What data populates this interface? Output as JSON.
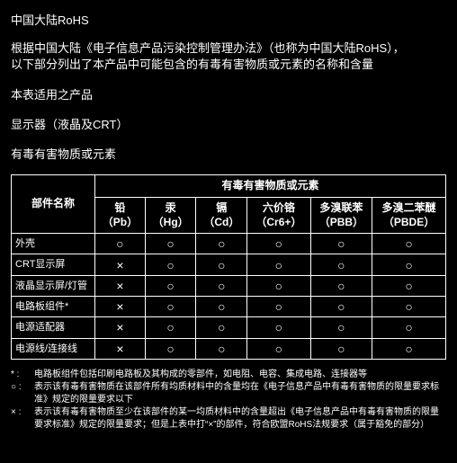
{
  "title": "中国大陆RoHS",
  "intro_line1": "根据中国大陆《电子信息产品污染控制管理办法》（也称为中国大陆RoHS），",
  "intro_line2": "以下部分列出了本产品中可能包含的有毒有害物质或元素的名称和含量",
  "section_products": "本表适用之产品",
  "section_display": "显示器（液晶及CRT）",
  "section_substances": "有毒有害物质或元素",
  "table": {
    "header_parts": "部件名称",
    "header_group": "有毒有害物质或元素",
    "sub": [
      {
        "zh": "铅",
        "sym": "（Pb）"
      },
      {
        "zh": "汞",
        "sym": "（Hg）"
      },
      {
        "zh": "镉",
        "sym": "（Cd）"
      },
      {
        "zh": "六价铬",
        "sym": "（Cr6+）"
      },
      {
        "zh": "多溴联苯",
        "sym": "（PBB）"
      },
      {
        "zh": "多溴二苯醚",
        "sym": "（PBDE）"
      }
    ],
    "rows": [
      {
        "name": "外壳",
        "cells": [
          "○",
          "○",
          "○",
          "○",
          "○",
          "○"
        ]
      },
      {
        "name": "CRT显示屏",
        "cells": [
          "×",
          "○",
          "○",
          "○",
          "○",
          "○"
        ]
      },
      {
        "name": "液晶显示屏/灯管",
        "cells": [
          "×",
          "○",
          "○",
          "○",
          "○",
          "○"
        ]
      },
      {
        "name": "电路板组件*",
        "cells": [
          "×",
          "○",
          "○",
          "○",
          "○",
          "○"
        ]
      },
      {
        "name": "电源适配器",
        "cells": [
          "×",
          "○",
          "○",
          "○",
          "○",
          "○"
        ]
      },
      {
        "name": "电源线/连接线",
        "cells": [
          "×",
          "○",
          "○",
          "○",
          "○",
          "○"
        ]
      }
    ]
  },
  "footnotes": [
    {
      "mark": "* :",
      "text": "电路板组件包括印刷电路板及其构成的零部件，如电阻、电容、集成电路、连接器等"
    },
    {
      "mark": "○ :",
      "text": "表示该有毒有害物质在该部件所有均质材料中的含量均在《电子信息产品中有毒有害物质的限量要求标准》规定的限量要求以下"
    },
    {
      "mark": "× :",
      "text": "表示该有毒有害物质至少在该部件的某一均质材料中的含量超出《电子信息产品中有毒有害物质的限量要求标准》规定的限量要求；但是上表中打“×”的部件，符合欧盟RoHS法规要求（属于豁免的部分）"
    }
  ]
}
